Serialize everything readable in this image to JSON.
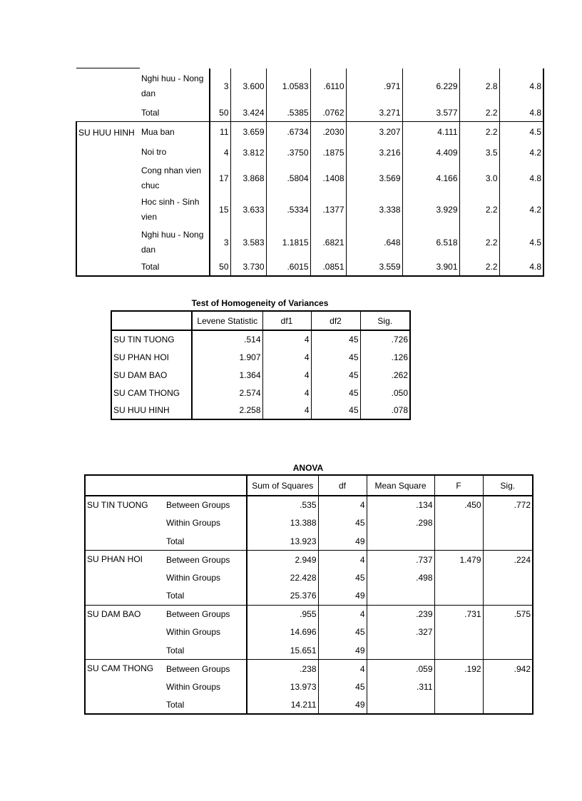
{
  "table1": {
    "groups": [
      {
        "label": null,
        "rows": [
          {
            "label": "Nghi huu - Nong dan",
            "values": [
              "3",
              "3.600",
              "1.0583",
              ".6110",
              ".971",
              "6.229",
              "2.8",
              "4.8"
            ]
          },
          {
            "label": "Total",
            "values": [
              "50",
              "3.424",
              ".5385",
              ".0762",
              "3.271",
              "3.577",
              "2.2",
              "4.8"
            ]
          }
        ]
      },
      {
        "label": "SU HUU HINH",
        "rows": [
          {
            "label": "Mua ban",
            "values": [
              "11",
              "3.659",
              ".6734",
              ".2030",
              "3.207",
              "4.111",
              "2.2",
              "4.5"
            ]
          },
          {
            "label": "Noi tro",
            "values": [
              "4",
              "3.812",
              ".3750",
              ".1875",
              "3.216",
              "4.409",
              "3.5",
              "4.2"
            ]
          },
          {
            "label": "Cong nhan vien chuc",
            "values": [
              "17",
              "3.868",
              ".5804",
              ".1408",
              "3.569",
              "4.166",
              "3.0",
              "4.8"
            ]
          },
          {
            "label": "Hoc sinh - Sinh vien",
            "values": [
              "15",
              "3.633",
              ".5334",
              ".1377",
              "3.338",
              "3.929",
              "2.2",
              "4.2"
            ]
          },
          {
            "label": "Nghi huu - Nong dan",
            "values": [
              "3",
              "3.583",
              "1.1815",
              ".6821",
              ".648",
              "6.518",
              "2.2",
              "4.5"
            ]
          },
          {
            "label": "Total",
            "values": [
              "50",
              "3.730",
              ".6015",
              ".0851",
              "3.559",
              "3.901",
              "2.2",
              "4.8"
            ]
          }
        ]
      }
    ]
  },
  "table2": {
    "title": "Test of Homogeneity of Variances",
    "headers": [
      null,
      "Levene Statistic",
      "df1",
      "df2",
      "Sig."
    ],
    "rows": [
      {
        "label": "SU TIN TUONG",
        "values": [
          ".514",
          "4",
          "45",
          ".726"
        ]
      },
      {
        "label": "SU PHAN HOI",
        "values": [
          "1.907",
          "4",
          "45",
          ".126"
        ]
      },
      {
        "label": "SU DAM BAO",
        "values": [
          "1.364",
          "4",
          "45",
          ".262"
        ]
      },
      {
        "label": "SU CAM THONG",
        "values": [
          "2.574",
          "4",
          "45",
          ".050"
        ]
      },
      {
        "label": "SU HUU HINH",
        "values": [
          "2.258",
          "4",
          "45",
          ".078"
        ]
      }
    ]
  },
  "table3": {
    "title": "ANOVA",
    "headers": [
      null,
      "Sum of Squares",
      "df",
      "Mean Square",
      "F",
      "Sig."
    ],
    "groups": [
      {
        "label": "SU TIN TUONG",
        "rows": [
          {
            "label": "Between Groups",
            "values": [
              ".535",
              "4",
              ".134",
              ".450",
              ".772"
            ]
          },
          {
            "label": "Within Groups",
            "values": [
              "13.388",
              "45",
              ".298",
              null,
              null
            ]
          },
          {
            "label": "Total",
            "values": [
              "13.923",
              "49",
              null,
              null,
              null
            ]
          }
        ]
      },
      {
        "label": "SU PHAN HOI",
        "rows": [
          {
            "label": "Between Groups",
            "values": [
              "2.949",
              "4",
              ".737",
              "1.479",
              ".224"
            ]
          },
          {
            "label": "Within Groups",
            "values": [
              "22.428",
              "45",
              ".498",
              null,
              null
            ]
          },
          {
            "label": "Total",
            "values": [
              "25.376",
              "49",
              null,
              null,
              null
            ]
          }
        ]
      },
      {
        "label": "SU DAM BAO",
        "rows": [
          {
            "label": "Between Groups",
            "values": [
              ".955",
              "4",
              ".239",
              ".731",
              ".575"
            ]
          },
          {
            "label": "Within Groups",
            "values": [
              "14.696",
              "45",
              ".327",
              null,
              null
            ]
          },
          {
            "label": "Total",
            "values": [
              "15.651",
              "49",
              null,
              null,
              null
            ]
          }
        ]
      },
      {
        "label": "SU CAM THONG",
        "rows": [
          {
            "label": "Between Groups",
            "values": [
              ".238",
              "4",
              ".059",
              ".192",
              ".942"
            ]
          },
          {
            "label": "Within Groups",
            "values": [
              "13.973",
              "45",
              ".311",
              null,
              null
            ]
          },
          {
            "label": "Total",
            "values": [
              "14.211",
              "49",
              null,
              null,
              null
            ]
          }
        ]
      }
    ]
  }
}
